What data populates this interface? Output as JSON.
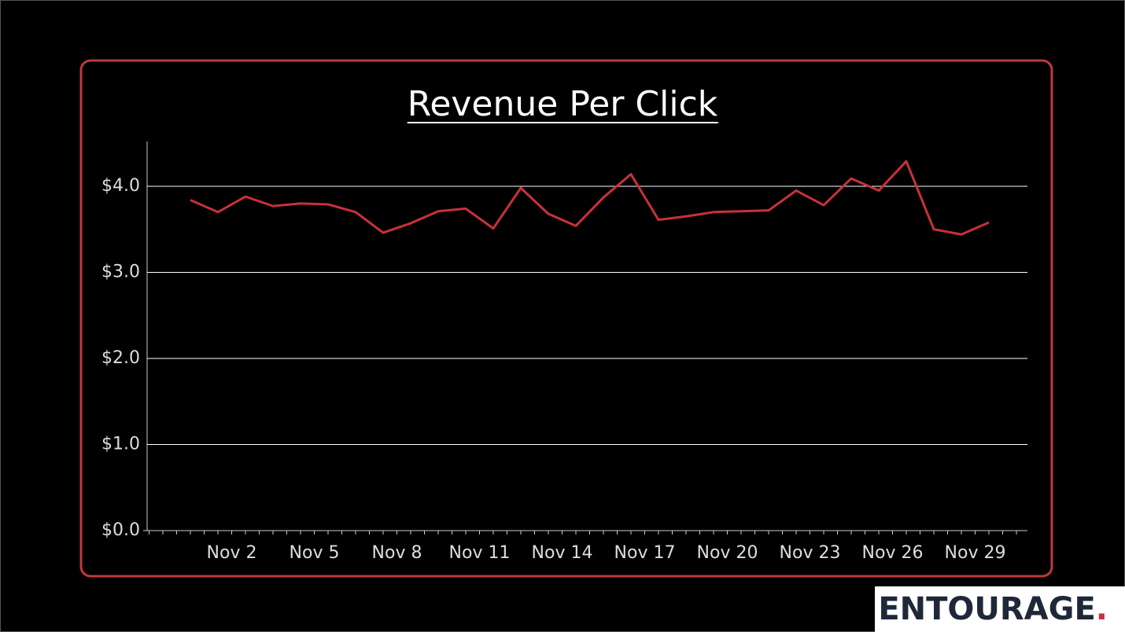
{
  "chart_data": {
    "type": "line",
    "title": "Revenue Per Click",
    "categories": [
      null,
      "Nov 2",
      null,
      null,
      "Nov 5",
      null,
      null,
      "Nov 8",
      null,
      null,
      "Nov 11",
      null,
      null,
      "Nov 14",
      null,
      null,
      "Nov 17",
      null,
      null,
      "Nov 20",
      null,
      null,
      "Nov 23",
      null,
      null,
      "Nov 26",
      null,
      null,
      "Nov 29",
      null
    ],
    "values": [
      3.84,
      3.7,
      3.88,
      3.77,
      3.8,
      3.79,
      3.7,
      3.46,
      3.57,
      3.71,
      3.74,
      3.51,
      3.98,
      3.68,
      3.54,
      3.87,
      4.14,
      3.61,
      3.65,
      3.7,
      3.71,
      3.72,
      3.95,
      3.78,
      4.09,
      3.95,
      4.29,
      3.5,
      3.44,
      3.58
    ],
    "color": "#c8313a",
    "ylim": [
      0,
      4.52
    ],
    "yticks": [
      {
        "value": 0,
        "label": "$0.0"
      },
      {
        "value": 1,
        "label": "$1.0"
      },
      {
        "value": 2,
        "label": "$2.0"
      },
      {
        "value": 3,
        "label": "$3.0"
      },
      {
        "value": 4,
        "label": "$4.0"
      }
    ],
    "grid": true
  },
  "logo": {
    "text": "ENTOURAGE",
    "dot": "."
  }
}
